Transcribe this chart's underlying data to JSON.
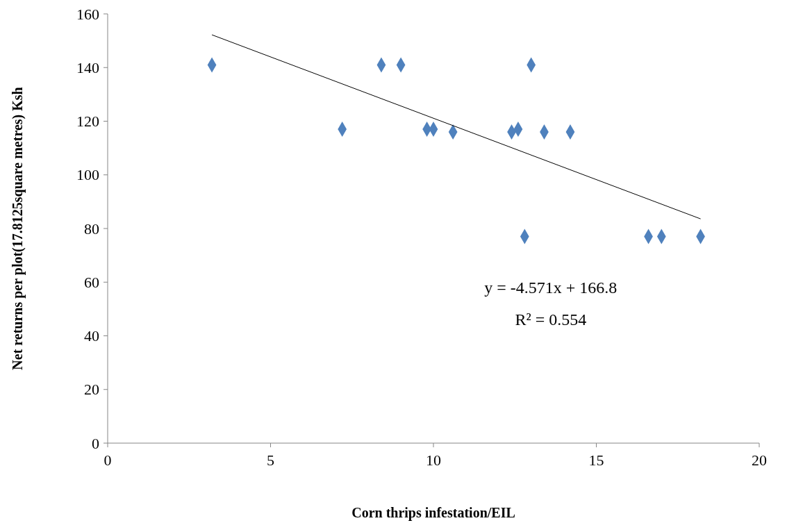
{
  "chart_data": {
    "type": "scatter",
    "xlabel": "Corn thrips infestation/EIL",
    "ylabel": "Net returns per plot(17.8125square metres) Ksh",
    "xlim": [
      0,
      20
    ],
    "xticks": [
      0,
      5,
      10,
      15,
      20
    ],
    "ylim": [
      0,
      160
    ],
    "yticks": [
      0,
      20,
      40,
      60,
      80,
      100,
      120,
      140,
      160
    ],
    "grid": false,
    "series": [
      {
        "color": "#4f81bd",
        "marker": "diamond",
        "x": [
          3.2,
          7.2,
          8.4,
          9.0,
          9.8,
          10.0,
          10.6,
          12.4,
          12.6,
          13.0,
          12.8,
          13.4,
          14.2,
          16.6,
          17.0,
          18.2
        ],
        "values": [
          141,
          117,
          141,
          141,
          117,
          117,
          116,
          116,
          117,
          141,
          77,
          116,
          116,
          77,
          77,
          77
        ]
      },
      {
        "type": "line",
        "color": "#000000",
        "marker": "none",
        "x": [
          3.2,
          18.2
        ],
        "values": [
          152.2,
          83.6
        ]
      }
    ],
    "annotations": [
      "y = -4.571x + 166.8",
      "R² = 0.554"
    ]
  }
}
